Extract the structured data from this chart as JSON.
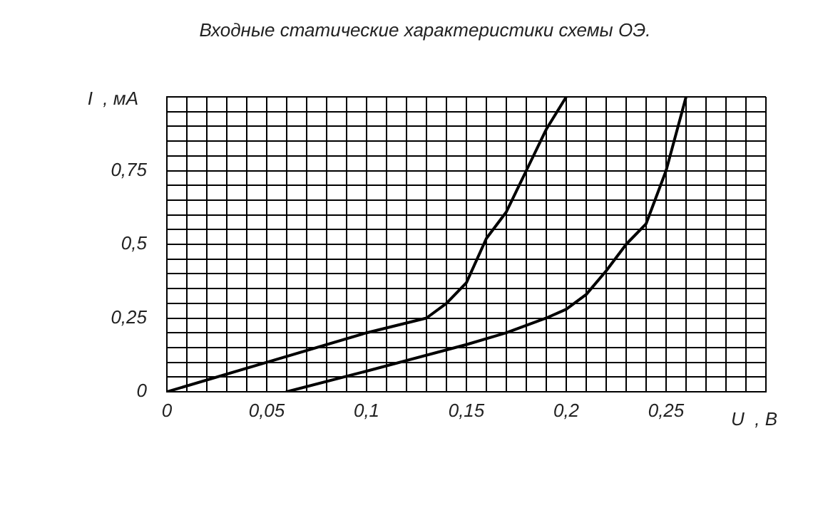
{
  "chart_data": {
    "type": "line",
    "title": "Входные статические характеристики схемы ОЭ.",
    "xlabel": "U  , B",
    "ylabel": "I  , мА",
    "series": [
      {
        "color": "#000000",
        "x": [
          0,
          0.05,
          0.1,
          0.13,
          0.14,
          0.15,
          0.16,
          0.17,
          0.18,
          0.19,
          0.2
        ],
        "values": [
          0,
          0.1,
          0.2,
          0.25,
          0.3,
          0.37,
          0.52,
          0.61,
          0.75,
          0.89,
          1.0
        ]
      },
      {
        "color": "#000000",
        "x": [
          0.06,
          0.1,
          0.15,
          0.17,
          0.19,
          0.2,
          0.21,
          0.22,
          0.23,
          0.24,
          0.25,
          0.26
        ],
        "values": [
          0,
          0.07,
          0.16,
          0.2,
          0.25,
          0.28,
          0.33,
          0.41,
          0.5,
          0.57,
          0.75,
          1.0
        ]
      }
    ],
    "xlim": [
      0,
      0.3
    ],
    "xticks": [
      0,
      {
        "value": 0.01,
        "label": null
      },
      {
        "value": 0.02,
        "label": null
      },
      {
        "value": 0.03,
        "label": null
      },
      {
        "value": 0.04,
        "label": null
      },
      {
        "value": 0.05,
        "label": "0,05"
      },
      {
        "value": 0.06,
        "label": null
      },
      {
        "value": 0.07,
        "label": null
      },
      {
        "value": 0.08,
        "label": null
      },
      {
        "value": 0.09,
        "label": null
      },
      {
        "value": 0.1,
        "label": "0,1"
      },
      {
        "value": 0.11,
        "label": null
      },
      {
        "value": 0.12,
        "label": null
      },
      {
        "value": 0.13,
        "label": null
      },
      {
        "value": 0.14,
        "label": null
      },
      {
        "value": 0.15,
        "label": "0,15"
      },
      {
        "value": 0.16,
        "label": null
      },
      {
        "value": 0.17,
        "label": null
      },
      {
        "value": 0.18,
        "label": null
      },
      {
        "value": 0.19,
        "label": null
      },
      {
        "value": 0.2,
        "label": "0,2"
      },
      {
        "value": 0.21,
        "label": null
      },
      {
        "value": 0.22,
        "label": null
      },
      {
        "value": 0.23,
        "label": null
      },
      {
        "value": 0.24,
        "label": null
      },
      {
        "value": 0.25,
        "label": "0,25"
      },
      {
        "value": 0.26,
        "label": null
      },
      {
        "value": 0.27,
        "label": null
      },
      {
        "value": 0.28,
        "label": null
      },
      {
        "value": 0.29,
        "label": null
      },
      {
        "value": 0.3,
        "label": null
      }
    ],
    "ylim": [
      0,
      1
    ],
    "yticks": [
      0,
      {
        "value": 0.05,
        "label": null
      },
      {
        "value": 0.1,
        "label": null
      },
      {
        "value": 0.15,
        "label": null
      },
      {
        "value": 0.2,
        "label": null
      },
      {
        "value": 0.25,
        "label": "0,25"
      },
      {
        "value": 0.3,
        "label": null
      },
      {
        "value": 0.35,
        "label": null
      },
      {
        "value": 0.4,
        "label": null
      },
      {
        "value": 0.45,
        "label": null
      },
      {
        "value": 0.5,
        "label": "0,5"
      },
      {
        "value": 0.55,
        "label": null
      },
      {
        "value": 0.6,
        "label": null
      },
      {
        "value": 0.65,
        "label": null
      },
      {
        "value": 0.7,
        "label": null
      },
      {
        "value": 0.75,
        "label": "0,75"
      },
      {
        "value": 0.8,
        "label": null
      },
      {
        "value": 0.85,
        "label": null
      },
      {
        "value": 0.9,
        "label": null
      },
      {
        "value": 0.95,
        "label": null
      },
      {
        "value": 1,
        "label": null
      }
    ],
    "grid": true,
    "legend": false,
    "marker": "none",
    "line_style": "solid"
  }
}
